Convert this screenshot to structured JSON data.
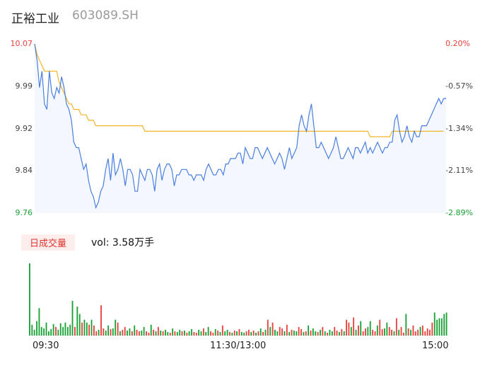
{
  "header": {
    "name": "正裕工业",
    "code": "603089.SH"
  },
  "volume_panel": {
    "badge": "日成交量",
    "label": "vol: 3.58万手"
  },
  "colors": {
    "price_line": "#4a7fe0",
    "avg_line": "#f0b528",
    "up": "#e8413c",
    "down": "#1aa136",
    "area": "#f4f7fd"
  },
  "chart_data": [
    {
      "type": "line",
      "title": "",
      "y_ticks_left": [
        "10.07",
        "9.99",
        "9.92",
        "9.84",
        "9.76"
      ],
      "y_ticks_right": [
        "0.20%",
        "-0.57%",
        "-1.34%",
        "-2.11%",
        "-2.89%"
      ],
      "ylim": [
        9.76,
        10.07
      ],
      "x_ticks": [
        "09:30",
        "11:30/13:00",
        "15:00"
      ],
      "series": [
        {
          "role": "price",
          "values": [
            10.07,
            10.04,
            9.99,
            10.02,
            9.96,
            9.95,
            10.02,
            9.98,
            9.97,
            9.99,
            9.98,
            10.01,
            9.99,
            9.96,
            9.95,
            9.93,
            9.89,
            9.88,
            9.88,
            9.86,
            9.84,
            9.85,
            9.82,
            9.8,
            9.79,
            9.77,
            9.78,
            9.8,
            9.81,
            9.84,
            9.86,
            9.82,
            9.87,
            9.83,
            9.84,
            9.86,
            9.84,
            9.81,
            9.84,
            9.84,
            9.83,
            9.8,
            9.8,
            9.84,
            9.83,
            9.82,
            9.84,
            9.84,
            9.83,
            9.8,
            9.84,
            9.85,
            9.82,
            9.84,
            9.85,
            9.85,
            9.84,
            9.81,
            9.83,
            9.83,
            9.84,
            9.84,
            9.84,
            9.83,
            9.83,
            9.82,
            9.83,
            9.83,
            9.83,
            9.82,
            9.84,
            9.85,
            9.84,
            9.83,
            9.83,
            9.84,
            9.84,
            9.83,
            9.85,
            9.85,
            9.86,
            9.86,
            9.86,
            9.87,
            9.87,
            9.85,
            9.88,
            9.87,
            9.86,
            9.86,
            9.88,
            9.88,
            9.87,
            9.86,
            9.87,
            9.88,
            9.87,
            9.86,
            9.85,
            9.86,
            9.87,
            9.86,
            9.84,
            9.86,
            9.88,
            9.86,
            9.87,
            9.88,
            9.92,
            9.94,
            9.92,
            9.91,
            9.94,
            9.96,
            9.92,
            9.88,
            9.88,
            9.89,
            9.88,
            9.87,
            9.86,
            9.87,
            9.88,
            9.9,
            9.88,
            9.86,
            9.86,
            9.87,
            9.88,
            9.87,
            9.86,
            9.88,
            9.88,
            9.87,
            9.88,
            9.89,
            9.87,
            9.88,
            9.87,
            9.88,
            9.89,
            9.88,
            9.87,
            9.88,
            9.88,
            9.89,
            9.89,
            9.93,
            9.94,
            9.91,
            9.89,
            9.9,
            9.92,
            9.9,
            9.89,
            9.91,
            9.9,
            9.9,
            9.92,
            9.92,
            9.92,
            9.93,
            9.94,
            9.95,
            9.96,
            9.97,
            9.96,
            9.97,
            9.97
          ]
        },
        {
          "role": "average",
          "values": [
            10.07,
            10.05,
            10.04,
            10.03,
            10.02,
            10.02,
            10.02,
            10.02,
            10.02,
            10.02,
            10.0,
            9.99,
            9.98,
            9.97,
            9.96,
            9.96,
            9.95,
            9.95,
            9.95,
            9.94,
            9.94,
            9.94,
            9.93,
            9.93,
            9.93,
            9.92,
            9.92,
            9.92,
            9.92,
            9.92,
            9.92,
            9.92,
            9.92,
            9.92,
            9.92,
            9.92,
            9.92,
            9.92,
            9.92,
            9.92,
            9.92,
            9.92,
            9.92,
            9.92,
            9.92,
            9.91,
            9.91,
            9.91,
            9.91,
            9.91,
            9.91,
            9.91,
            9.91,
            9.91,
            9.91,
            9.91,
            9.91,
            9.91,
            9.91,
            9.91,
            9.91,
            9.91,
            9.91,
            9.91,
            9.91,
            9.91,
            9.91,
            9.91,
            9.91,
            9.91,
            9.91,
            9.91,
            9.91,
            9.91,
            9.91,
            9.91,
            9.91,
            9.91,
            9.91,
            9.91,
            9.91,
            9.91,
            9.91,
            9.91,
            9.91,
            9.91,
            9.91,
            9.91,
            9.91,
            9.91,
            9.91,
            9.91,
            9.91,
            9.91,
            9.91,
            9.91,
            9.91,
            9.91,
            9.91,
            9.91,
            9.91,
            9.91,
            9.91,
            9.91,
            9.91,
            9.91,
            9.91,
            9.91,
            9.91,
            9.91,
            9.91,
            9.91,
            9.91,
            9.91,
            9.91,
            9.91,
            9.91,
            9.91,
            9.91,
            9.91,
            9.91,
            9.91,
            9.91,
            9.91,
            9.91,
            9.91,
            9.91,
            9.91,
            9.91,
            9.91,
            9.91,
            9.91,
            9.91,
            9.91,
            9.91,
            9.91,
            9.91,
            9.9,
            9.9,
            9.9,
            9.9,
            9.9,
            9.9,
            9.9,
            9.9,
            9.9,
            9.91,
            9.91,
            9.91,
            9.91,
            9.91,
            9.91,
            9.91,
            9.91,
            9.91,
            9.91,
            9.91,
            9.91,
            9.91,
            9.91,
            9.91,
            9.91,
            9.91,
            9.91,
            9.91,
            9.91,
            9.91,
            9.91
          ]
        }
      ]
    },
    {
      "type": "bar",
      "title": "",
      "ylim": [
        0,
        100
      ],
      "values": [
        100,
        15,
        8,
        20,
        38,
        12,
        10,
        18,
        6,
        9,
        16,
        12,
        8,
        17,
        12,
        18,
        12,
        15,
        48,
        12,
        40,
        30,
        18,
        22,
        18,
        15,
        22,
        14,
        6,
        8,
        42,
        10,
        7,
        14,
        9,
        10,
        22,
        18,
        6,
        8,
        12,
        7,
        10,
        6,
        14,
        8,
        6,
        7,
        12,
        6,
        4,
        15,
        8,
        6,
        12,
        7,
        6,
        8,
        5,
        4,
        10,
        6,
        5,
        8,
        6,
        7,
        4,
        6,
        9,
        5,
        4,
        8,
        6,
        10,
        5,
        12,
        6,
        4,
        9,
        7,
        5,
        14,
        6,
        8,
        5,
        4,
        7,
        6,
        9,
        5,
        4,
        6,
        8,
        5,
        7,
        4,
        6,
        10,
        5,
        8,
        22,
        12,
        18,
        8,
        6,
        12,
        10,
        6,
        15,
        5,
        8,
        7,
        6,
        12,
        9,
        5,
        6,
        14,
        7,
        10,
        6,
        5,
        8,
        12,
        6,
        4,
        8,
        6,
        12,
        7,
        5,
        9,
        6,
        22,
        18,
        12,
        25,
        8,
        14,
        20,
        6,
        10,
        12,
        20,
        8,
        6,
        14,
        22,
        9,
        10,
        18,
        12,
        8,
        6,
        24,
        8,
        12,
        4,
        30,
        10,
        8,
        14,
        6,
        8,
        12,
        14,
        6,
        10,
        8,
        18,
        32,
        22,
        24,
        24,
        30,
        32
      ],
      "up_down": [
        "d",
        "d",
        "d",
        "d",
        "d",
        "d",
        "d",
        "d",
        "d",
        "d",
        "d",
        "u",
        "d",
        "d",
        "d",
        "d",
        "d",
        "d",
        "d",
        "u",
        "d",
        "d",
        "u",
        "d",
        "d",
        "u",
        "d",
        "u",
        "u",
        "d",
        "u",
        "u",
        "d",
        "d",
        "u",
        "d",
        "d",
        "u",
        "d",
        "u",
        "u",
        "d",
        "d",
        "u",
        "d",
        "u",
        "u",
        "d",
        "d",
        "u",
        "u",
        "d",
        "u",
        "d",
        "u",
        "d",
        "u",
        "d",
        "d",
        "u",
        "d",
        "u",
        "d",
        "d",
        "u",
        "d",
        "u",
        "d",
        "d",
        "u",
        "u",
        "d",
        "d",
        "u",
        "d",
        "d",
        "u",
        "u",
        "d",
        "u",
        "d",
        "u",
        "d",
        "d",
        "u",
        "d",
        "u",
        "d",
        "u",
        "d",
        "d",
        "u",
        "u",
        "d",
        "u",
        "d",
        "u",
        "d",
        "u",
        "d",
        "u",
        "d",
        "u",
        "d",
        "d",
        "u",
        "u",
        "d",
        "u",
        "d",
        "u",
        "d",
        "d",
        "u",
        "u",
        "d",
        "u",
        "d",
        "u",
        "d",
        "d",
        "u",
        "d",
        "u",
        "d",
        "u",
        "d",
        "d",
        "u",
        "u",
        "d",
        "u",
        "d",
        "u",
        "u",
        "d",
        "u",
        "d",
        "u",
        "d",
        "u",
        "u",
        "d",
        "d",
        "u",
        "u",
        "d",
        "u",
        "u",
        "d",
        "d",
        "u",
        "u",
        "d",
        "u",
        "d",
        "u",
        "u",
        "d",
        "u",
        "d",
        "u",
        "u",
        "u",
        "d",
        "u",
        "u",
        "u",
        "u",
        "u"
      ]
    }
  ]
}
